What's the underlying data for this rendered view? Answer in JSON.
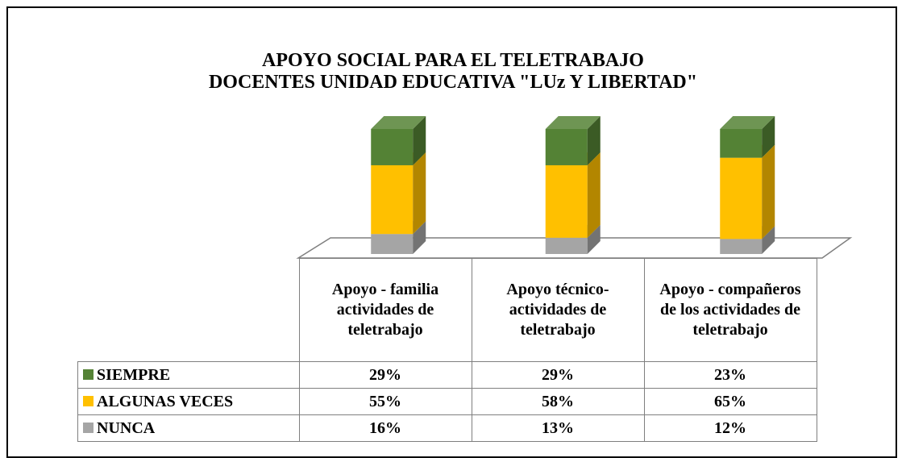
{
  "chart_data": {
    "type": "bar3d_stacked",
    "title": "APOYO SOCIAL PARA EL TELETRABAJO",
    "subtitle": "DOCENTES UNIDAD EDUCATIVA \"LUz Y LIBERTAD\"",
    "categories": [
      "Apoyo - familia actividades de teletrabajo",
      "Apoyo técnico-actividades de teletrabajo",
      "Apoyo - compañeros de los actividades de teletrabajo"
    ],
    "series": [
      {
        "name": "SIEMPRE",
        "color": "#548235",
        "values": [
          29,
          29,
          23
        ],
        "value_labels": [
          "29%",
          "29%",
          "23%"
        ]
      },
      {
        "name": "ALGUNAS VECES",
        "color": "#ffc000",
        "values": [
          55,
          58,
          65
        ],
        "value_labels": [
          "55%",
          "58%",
          "65%"
        ]
      },
      {
        "name": "NUNCA",
        "color": "#a5a5a5",
        "values": [
          16,
          13,
          12
        ],
        "value_labels": [
          "16%",
          "13%",
          "12%"
        ]
      }
    ]
  }
}
